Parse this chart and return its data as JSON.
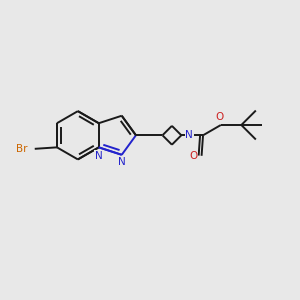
{
  "background_color": "#e8e8e8",
  "bond_color": "#1a1a1a",
  "n_color": "#2222cc",
  "o_color": "#cc2222",
  "br_color": "#cc6600",
  "bond_lw": 1.4,
  "figsize": [
    3.0,
    3.0
  ],
  "dpi": 100,
  "xlim": [
    0,
    10
  ],
  "ylim": [
    0,
    10
  ]
}
